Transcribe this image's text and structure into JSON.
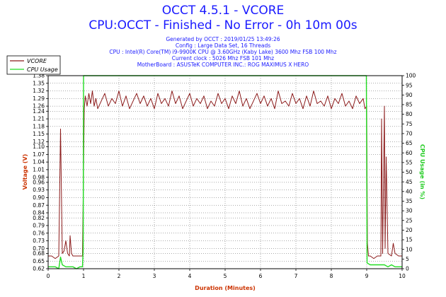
{
  "header": {
    "title": "OCCT 4.5.1 - VCORE",
    "subtitle": "CPU:OCCT - Finished - No Error - 0h 10m 00s",
    "info_lines": [
      "Generated by OCCT : 2019/01/25 13:49:26",
      "Config : Large Data Set, 16 Threads",
      "CPU : Intel(R) Core(TM) i9-9900K CPU @ 3.60GHz (Kaby Lake) 3600 Mhz FSB 100 Mhz",
      "Current clock : 5026 Mhz FSB 101 Mhz",
      "MotherBoard : ASUSTeK COMPUTER INC.: ROG MAXIMUS X HERO"
    ]
  },
  "colors": {
    "vcore": "#8b1a1a",
    "cpu_usage": "#22dd22",
    "xlabel": "#cc3300",
    "ylabel_left": "#cc3300",
    "ylabel_right": "#22cc22",
    "text_blue": "#1a1aff",
    "grid": "#555555"
  },
  "chart_data": {
    "type": "line",
    "xlabel": "Duration (Minutes)",
    "ylabel": "Voltage (V)",
    "ylabel_right": "CPU Usage (in %)",
    "xlim": [
      0,
      10
    ],
    "ylim": [
      0.62,
      1.38
    ],
    "ylim_right": [
      0,
      100
    ],
    "x_ticks": [
      "0",
      "1",
      "2",
      "3",
      "4",
      "5",
      "6",
      "7",
      "8",
      "9",
      "10"
    ],
    "y_ticks": [
      "0.62",
      "0.65",
      "0.68",
      "0.70",
      "0.73",
      "0.76",
      "0.79",
      "0.82",
      "0.84",
      "0.87",
      "0.90",
      "0.93",
      "0.96",
      "0.98",
      "1.01",
      "1.04",
      "1.07",
      "1.10",
      "1.12",
      "1.15",
      "1.18",
      "1.21",
      "1.24",
      "1.26",
      "1.29",
      "1.32",
      "1.35",
      "1.38"
    ],
    "y_ticks_right": [
      "0",
      "5",
      "10",
      "15",
      "20",
      "25",
      "30",
      "35",
      "40",
      "45",
      "50",
      "55",
      "60",
      "65",
      "70",
      "75",
      "80",
      "85",
      "90",
      "95",
      "100"
    ],
    "grid": "dotted",
    "legend": {
      "placement": "top-left",
      "entries": [
        "VCORE",
        "CPU Usage"
      ]
    },
    "series": [
      {
        "name": "VCORE",
        "axis": "left",
        "x": [
          0,
          0.1,
          0.2,
          0.3,
          0.35,
          0.4,
          0.45,
          0.5,
          0.55,
          0.6,
          0.62,
          0.66,
          0.7,
          0.8,
          0.9,
          0.97,
          1.0,
          1.02,
          1.05,
          1.1,
          1.15,
          1.2,
          1.25,
          1.3,
          1.35,
          1.4,
          1.5,
          1.6,
          1.7,
          1.8,
          1.9,
          2.0,
          2.1,
          2.2,
          2.3,
          2.4,
          2.5,
          2.6,
          2.7,
          2.8,
          2.9,
          3.0,
          3.1,
          3.2,
          3.3,
          3.4,
          3.5,
          3.6,
          3.7,
          3.8,
          3.9,
          4.0,
          4.1,
          4.2,
          4.3,
          4.4,
          4.5,
          4.6,
          4.7,
          4.8,
          4.9,
          5.0,
          5.1,
          5.2,
          5.3,
          5.4,
          5.5,
          5.6,
          5.7,
          5.8,
          5.9,
          6.0,
          6.1,
          6.2,
          6.3,
          6.4,
          6.5,
          6.6,
          6.7,
          6.8,
          6.9,
          7.0,
          7.1,
          7.2,
          7.3,
          7.4,
          7.5,
          7.6,
          7.7,
          7.8,
          7.9,
          8.0,
          8.1,
          8.2,
          8.3,
          8.4,
          8.5,
          8.6,
          8.7,
          8.8,
          8.9,
          8.95,
          9.0,
          9.02,
          9.05,
          9.1,
          9.2,
          9.3,
          9.4,
          9.42,
          9.45,
          9.5,
          9.52,
          9.55,
          9.6,
          9.7,
          9.75,
          9.8,
          9.9,
          10.0
        ],
        "values": [
          0.67,
          0.67,
          0.66,
          0.67,
          1.17,
          0.68,
          0.69,
          0.73,
          0.68,
          0.67,
          0.75,
          0.68,
          0.67,
          0.67,
          0.67,
          0.67,
          1.01,
          1.25,
          1.3,
          1.26,
          1.31,
          1.27,
          1.32,
          1.26,
          1.29,
          1.25,
          1.28,
          1.31,
          1.26,
          1.29,
          1.27,
          1.32,
          1.26,
          1.3,
          1.25,
          1.28,
          1.31,
          1.27,
          1.3,
          1.26,
          1.29,
          1.25,
          1.31,
          1.27,
          1.29,
          1.26,
          1.32,
          1.27,
          1.3,
          1.25,
          1.28,
          1.31,
          1.26,
          1.29,
          1.27,
          1.3,
          1.25,
          1.28,
          1.26,
          1.31,
          1.27,
          1.29,
          1.25,
          1.3,
          1.27,
          1.32,
          1.26,
          1.29,
          1.25,
          1.28,
          1.31,
          1.27,
          1.3,
          1.26,
          1.29,
          1.25,
          1.32,
          1.27,
          1.28,
          1.26,
          1.31,
          1.27,
          1.29,
          1.25,
          1.3,
          1.26,
          1.32,
          1.27,
          1.28,
          1.26,
          1.3,
          1.25,
          1.29,
          1.27,
          1.31,
          1.26,
          1.28,
          1.25,
          1.3,
          1.27,
          1.29,
          1.25,
          1.26,
          0.72,
          0.67,
          0.67,
          0.66,
          0.67,
          0.67,
          1.21,
          0.68,
          1.26,
          0.7,
          1.06,
          0.68,
          0.67,
          0.72,
          0.68,
          0.67,
          0.67
        ]
      },
      {
        "name": "CPU Usage",
        "axis": "right",
        "x": [
          0,
          0.2,
          0.3,
          0.35,
          0.4,
          0.5,
          0.6,
          0.7,
          0.8,
          0.9,
          0.97,
          0.99,
          1.0,
          1.01,
          1.5,
          2.0,
          3.0,
          4.0,
          5.0,
          6.0,
          7.0,
          8.0,
          8.95,
          8.99,
          9.0,
          9.01,
          9.1,
          9.3,
          9.5,
          9.6,
          9.7,
          9.8,
          9.9,
          10.0
        ],
        "values": [
          1,
          1,
          0,
          6,
          2,
          1,
          1,
          1,
          0,
          1,
          1,
          10,
          100,
          100,
          100,
          100,
          100,
          100,
          100,
          100,
          100,
          100,
          100,
          100,
          56,
          3,
          2,
          2,
          2,
          1,
          2,
          1,
          1,
          1
        ]
      }
    ]
  }
}
